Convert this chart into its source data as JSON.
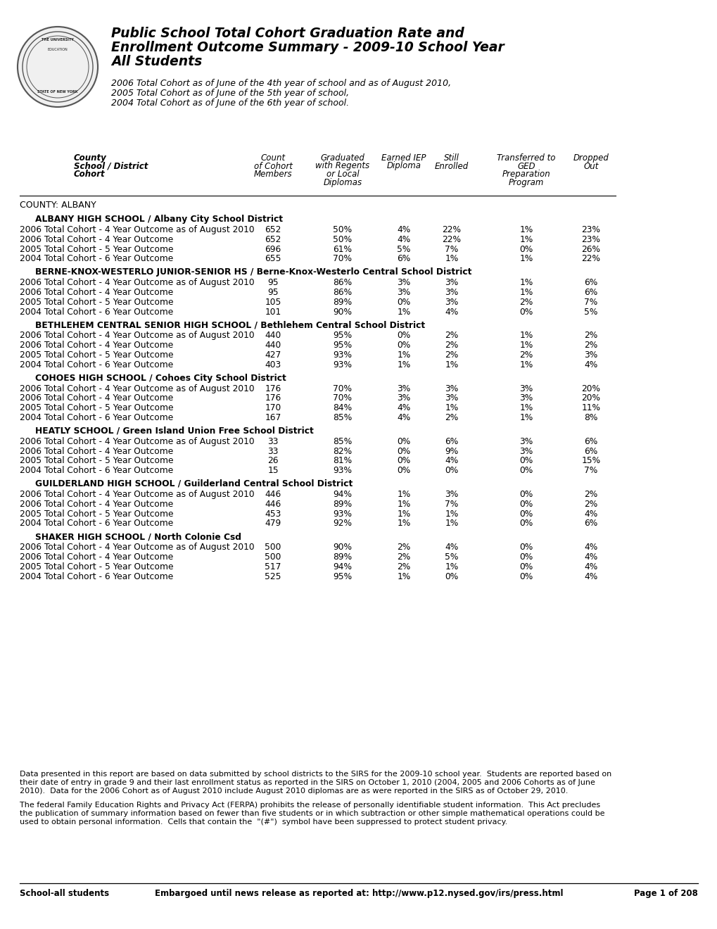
{
  "title_line1": "Public School Total Cohort Graduation Rate and",
  "title_line2": "Enrollment Outcome Summary - 2009-10 School Year",
  "title_line3": "All Students",
  "subtitle_lines": [
    "2006 Total Cohort as of June of the 4th year of school and as of August 2010,",
    "2005 Total Cohort as of June of the 5th year of school,",
    "2004 Total Cohort as of June of the 6th year of school."
  ],
  "county_label": "COUNTY: ALBANY",
  "schools": [
    {
      "name": "ALBANY HIGH SCHOOL / Albany City School District",
      "rows": [
        [
          "2006 Total Cohort - 4 Year Outcome as of August 2010",
          "652",
          "50%",
          "4%",
          "22%",
          "1%",
          "23%"
        ],
        [
          "2006 Total Cohort - 4 Year Outcome",
          "652",
          "50%",
          "4%",
          "22%",
          "1%",
          "23%"
        ],
        [
          "2005 Total Cohort - 5 Year Outcome",
          "696",
          "61%",
          "5%",
          "7%",
          "0%",
          "26%"
        ],
        [
          "2004 Total Cohort - 6 Year Outcome",
          "655",
          "70%",
          "6%",
          "1%",
          "1%",
          "22%"
        ]
      ]
    },
    {
      "name": "BERNE-KNOX-WESTERLO JUNIOR-SENIOR HS / Berne-Knox-Westerlo Central School District",
      "rows": [
        [
          "2006 Total Cohort - 4 Year Outcome as of August 2010",
          "95",
          "86%",
          "3%",
          "3%",
          "1%",
          "6%"
        ],
        [
          "2006 Total Cohort - 4 Year Outcome",
          "95",
          "86%",
          "3%",
          "3%",
          "1%",
          "6%"
        ],
        [
          "2005 Total Cohort - 5 Year Outcome",
          "105",
          "89%",
          "0%",
          "3%",
          "2%",
          "7%"
        ],
        [
          "2004 Total Cohort - 6 Year Outcome",
          "101",
          "90%",
          "1%",
          "4%",
          "0%",
          "5%"
        ]
      ]
    },
    {
      "name": "BETHLEHEM CENTRAL SENIOR HIGH SCHOOL / Bethlehem Central School District",
      "rows": [
        [
          "2006 Total Cohort - 4 Year Outcome as of August 2010",
          "440",
          "95%",
          "0%",
          "2%",
          "1%",
          "2%"
        ],
        [
          "2006 Total Cohort - 4 Year Outcome",
          "440",
          "95%",
          "0%",
          "2%",
          "1%",
          "2%"
        ],
        [
          "2005 Total Cohort - 5 Year Outcome",
          "427",
          "93%",
          "1%",
          "2%",
          "2%",
          "3%"
        ],
        [
          "2004 Total Cohort - 6 Year Outcome",
          "403",
          "93%",
          "1%",
          "1%",
          "1%",
          "4%"
        ]
      ]
    },
    {
      "name": "COHOES HIGH SCHOOL / Cohoes City School District",
      "rows": [
        [
          "2006 Total Cohort - 4 Year Outcome as of August 2010",
          "176",
          "70%",
          "3%",
          "3%",
          "3%",
          "20%"
        ],
        [
          "2006 Total Cohort - 4 Year Outcome",
          "176",
          "70%",
          "3%",
          "3%",
          "3%",
          "20%"
        ],
        [
          "2005 Total Cohort - 5 Year Outcome",
          "170",
          "84%",
          "4%",
          "1%",
          "1%",
          "11%"
        ],
        [
          "2004 Total Cohort - 6 Year Outcome",
          "167",
          "85%",
          "4%",
          "2%",
          "1%",
          "8%"
        ]
      ]
    },
    {
      "name": "HEATLY SCHOOL / Green Island Union Free School District",
      "rows": [
        [
          "2006 Total Cohort - 4 Year Outcome as of August 2010",
          "33",
          "85%",
          "0%",
          "6%",
          "3%",
          "6%"
        ],
        [
          "2006 Total Cohort - 4 Year Outcome",
          "33",
          "82%",
          "0%",
          "9%",
          "3%",
          "6%"
        ],
        [
          "2005 Total Cohort - 5 Year Outcome",
          "26",
          "81%",
          "0%",
          "4%",
          "0%",
          "15%"
        ],
        [
          "2004 Total Cohort - 6 Year Outcome",
          "15",
          "93%",
          "0%",
          "0%",
          "0%",
          "7%"
        ]
      ]
    },
    {
      "name": "GUILDERLAND HIGH SCHOOL / Guilderland Central School District",
      "rows": [
        [
          "2006 Total Cohort - 4 Year Outcome as of August 2010",
          "446",
          "94%",
          "1%",
          "3%",
          "0%",
          "2%"
        ],
        [
          "2006 Total Cohort - 4 Year Outcome",
          "446",
          "89%",
          "1%",
          "7%",
          "0%",
          "2%"
        ],
        [
          "2005 Total Cohort - 5 Year Outcome",
          "453",
          "93%",
          "1%",
          "1%",
          "0%",
          "4%"
        ],
        [
          "2004 Total Cohort - 6 Year Outcome",
          "479",
          "92%",
          "1%",
          "1%",
          "0%",
          "6%"
        ]
      ]
    },
    {
      "name": "SHAKER HIGH SCHOOL / North Colonie Csd",
      "rows": [
        [
          "2006 Total Cohort - 4 Year Outcome as of August 2010",
          "500",
          "90%",
          "2%",
          "4%",
          "0%",
          "4%"
        ],
        [
          "2006 Total Cohort - 4 Year Outcome",
          "500",
          "89%",
          "2%",
          "5%",
          "0%",
          "4%"
        ],
        [
          "2005 Total Cohort - 5 Year Outcome",
          "517",
          "94%",
          "2%",
          "1%",
          "0%",
          "4%"
        ],
        [
          "2004 Total Cohort - 6 Year Outcome",
          "525",
          "95%",
          "1%",
          "0%",
          "0%",
          "4%"
        ]
      ]
    }
  ],
  "footer_notes": [
    "Data presented in this report are based on data submitted by school districts to the SIRS for the 2009-10 school year.  Students are reported based on",
    "their date of entry in grade 9 and their last enrollment status as reported in the SIRS on October 1, 2010 (2004, 2005 and 2006 Cohorts as of June",
    "2010).  Data for the 2006 Cohort as of August 2010 include August 2010 diplomas are as were reported in the SIRS as of October 29, 2010.",
    "",
    "The federal Family Education Rights and Privacy Act (FERPA) prohibits the release of personally identifiable student information.  This Act precludes",
    "the publication of summary information based on fewer than five students or in which subtraction or other simple mathematical operations could be",
    "used to obtain personal information.  Cells that contain the  \"(#\")  symbol have been suppressed to protect student privacy."
  ],
  "footer_bottom_left": "School-all students",
  "footer_bottom_center": "Embargoed until news release as reported at: http://www.p12.nysed.gov/irs/press.html",
  "footer_bottom_right": "Page 1 of 208",
  "bg_color": "#ffffff"
}
